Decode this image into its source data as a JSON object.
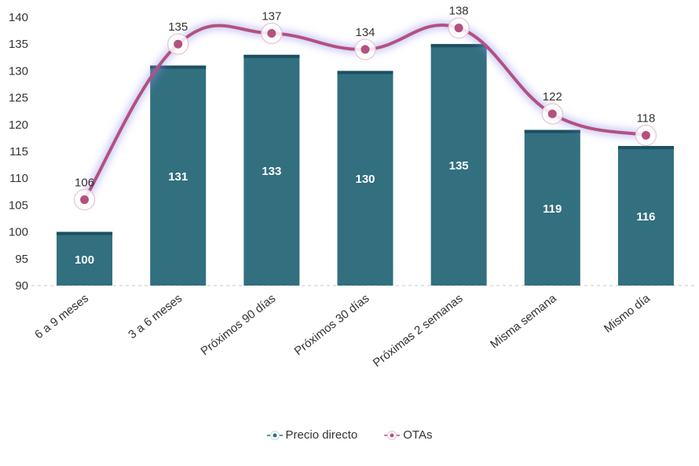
{
  "chart_data": {
    "type": "bar",
    "categories": [
      "6 a 9 meses",
      "3 a 6 meses",
      "Próximos 90 días",
      "Próximos 30 días",
      "Próximas 2 semanas",
      "Misma semana",
      "Mismo día"
    ],
    "series": [
      {
        "name": "Precio directo",
        "type": "bar",
        "values": [
          100,
          131,
          133,
          130,
          135,
          119,
          116
        ],
        "color": "#326f7f"
      },
      {
        "name": "OTAs",
        "type": "line",
        "values": [
          106,
          135,
          137,
          134,
          138,
          122,
          118
        ],
        "color": "#b3517e"
      }
    ],
    "yticks": [
      90,
      95,
      100,
      105,
      110,
      115,
      120,
      125,
      130,
      135,
      140
    ],
    "ylim": [
      90,
      140
    ],
    "legend": "bottom",
    "grid": false
  }
}
